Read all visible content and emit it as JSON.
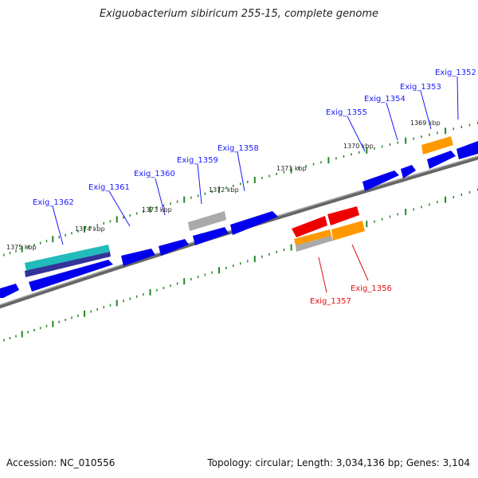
{
  "title": "Exiguobacterium sibiricum 255-15, complete genome",
  "footer": {
    "accession": "Accession: NC_010556",
    "topology": "Topology: circular; Length: 3,034,136 bp; Genes: 3,104"
  },
  "colors": {
    "forward_gene": "#0000ee",
    "reverse_gene_red": "#ee0000",
    "orange_gene": "#ff9900",
    "gray_gene": "#aaaaaa",
    "teal_gene": "#22bbbb",
    "backbone": "#888888",
    "tick": "#228822",
    "label_forward": "#1a1aff",
    "label_reverse": "#e01010"
  },
  "kbp_labels": [
    "1369 kbp",
    "1370 kbp",
    "1371 kbp",
    "1372 kbp",
    "1373 kbp",
    "1374 kbp",
    "1375 kbp"
  ],
  "gene_labels_forward": [
    "Exig_1352",
    "Exig_1353",
    "Exig_1354",
    "Exig_1355",
    "Exig_1358",
    "Exig_1359",
    "Exig_1360",
    "Exig_1361",
    "Exig_1362"
  ],
  "gene_labels_reverse": [
    "Exig_1356",
    "Exig_1357"
  ]
}
